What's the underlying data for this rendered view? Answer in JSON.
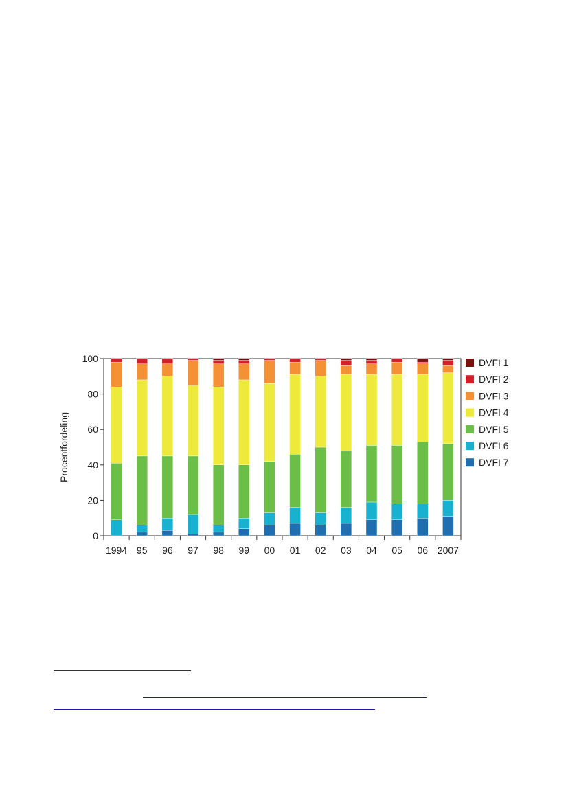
{
  "chart_data": {
    "type": "bar",
    "stacked": true,
    "categories": [
      "1994",
      "95",
      "96",
      "97",
      "98",
      "99",
      "00",
      "01",
      "02",
      "03",
      "04",
      "05",
      "06",
      "2007"
    ],
    "ylabel": "Procentfordeling",
    "ylim": [
      0,
      100
    ],
    "yticks": [
      0,
      20,
      40,
      60,
      80,
      100
    ],
    "grid": false,
    "legend_position": "right",
    "series": [
      {
        "name": "DVFI 7",
        "color": "#1f6fb0",
        "values": [
          0,
          2,
          3,
          1,
          2,
          4,
          6,
          7,
          6,
          7,
          9,
          9,
          10,
          11
        ]
      },
      {
        "name": "DVFI 6",
        "color": "#18b2d0",
        "values": [
          9,
          4,
          7,
          11,
          4,
          6,
          7,
          9,
          7,
          9,
          10,
          9,
          8,
          9
        ]
      },
      {
        "name": "DVFI 5",
        "color": "#6cbf46",
        "values": [
          32,
          39,
          35,
          33,
          34,
          30,
          29,
          30,
          37,
          32,
          32,
          33,
          35,
          32
        ]
      },
      {
        "name": "DVFI 4",
        "color": "#eeea3c",
        "values": [
          43,
          43,
          45,
          40,
          44,
          48,
          44,
          45,
          40,
          43,
          40,
          40,
          38,
          40
        ]
      },
      {
        "name": "DVFI 3",
        "color": "#f39134",
        "values": [
          14,
          9,
          7,
          14,
          13,
          9,
          13,
          7,
          9,
          5,
          6,
          7,
          6,
          4
        ]
      },
      {
        "name": "DVFI 2",
        "color": "#d4202a",
        "values": [
          2,
          3,
          3,
          1,
          2,
          2,
          1,
          2,
          1,
          3,
          2,
          2,
          1,
          3
        ]
      },
      {
        "name": "DVFI 1",
        "color": "#7a1010",
        "values": [
          0,
          0,
          0,
          0,
          1,
          1,
          0,
          0,
          0,
          1,
          1,
          0,
          2,
          1
        ]
      }
    ],
    "legend_order": [
      "DVFI 1",
      "DVFI 2",
      "DVFI 3",
      "DVFI 4",
      "DVFI 5",
      "DVFI 6",
      "DVFI 7"
    ]
  }
}
